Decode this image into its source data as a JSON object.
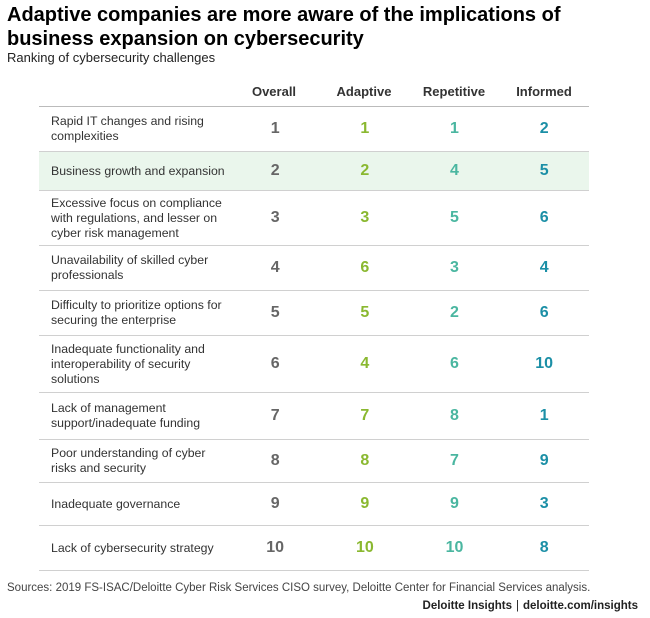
{
  "title": "Adaptive companies are more aware of the implications of business expansion on cybersecurity",
  "subtitle": "Ranking of cybersecurity challenges",
  "source": "Sources: 2019 FS-ISAC/Deloitte Cyber Risk Services CISO survey, Deloitte Center for Financial Services analysis.",
  "brand": {
    "left": "Deloitte Insights",
    "sep": "|",
    "right": "deloitte.com/insights"
  },
  "colors": {
    "overall": "#666666",
    "adaptive": "#8ab830",
    "repetitive": "#4ab6a0",
    "informed": "#1b8fa6",
    "highlight": "#eaf6ec"
  },
  "chart_data": {
    "type": "table",
    "columns": [
      "Overall",
      "Adaptive",
      "Repetitive",
      "Informed"
    ],
    "highlight_row": 1,
    "rows": [
      {
        "label": "Rapid IT changes and rising complexities",
        "values": [
          1,
          1,
          1,
          2
        ]
      },
      {
        "label": "Business growth and expansion",
        "values": [
          2,
          2,
          4,
          5
        ]
      },
      {
        "label": "Excessive focus on compliance with regulations, and lesser on cyber risk management",
        "values": [
          3,
          3,
          5,
          6
        ]
      },
      {
        "label": "Unavailability of skilled cyber professionals",
        "values": [
          4,
          6,
          3,
          4
        ]
      },
      {
        "label": "Difficulty to prioritize options for securing the enterprise",
        "values": [
          5,
          5,
          2,
          6
        ]
      },
      {
        "label": "Inadequate functionality and interoperability of security solutions",
        "values": [
          6,
          4,
          6,
          10
        ]
      },
      {
        "label": "Lack of management support/inadequate funding",
        "values": [
          7,
          7,
          8,
          1
        ]
      },
      {
        "label": "Poor understanding of cyber risks and security",
        "values": [
          8,
          8,
          7,
          9
        ]
      },
      {
        "label": "Inadequate governance",
        "values": [
          9,
          9,
          9,
          3
        ]
      },
      {
        "label": "Lack of cybersecurity strategy",
        "values": [
          10,
          10,
          10,
          8
        ]
      }
    ]
  }
}
